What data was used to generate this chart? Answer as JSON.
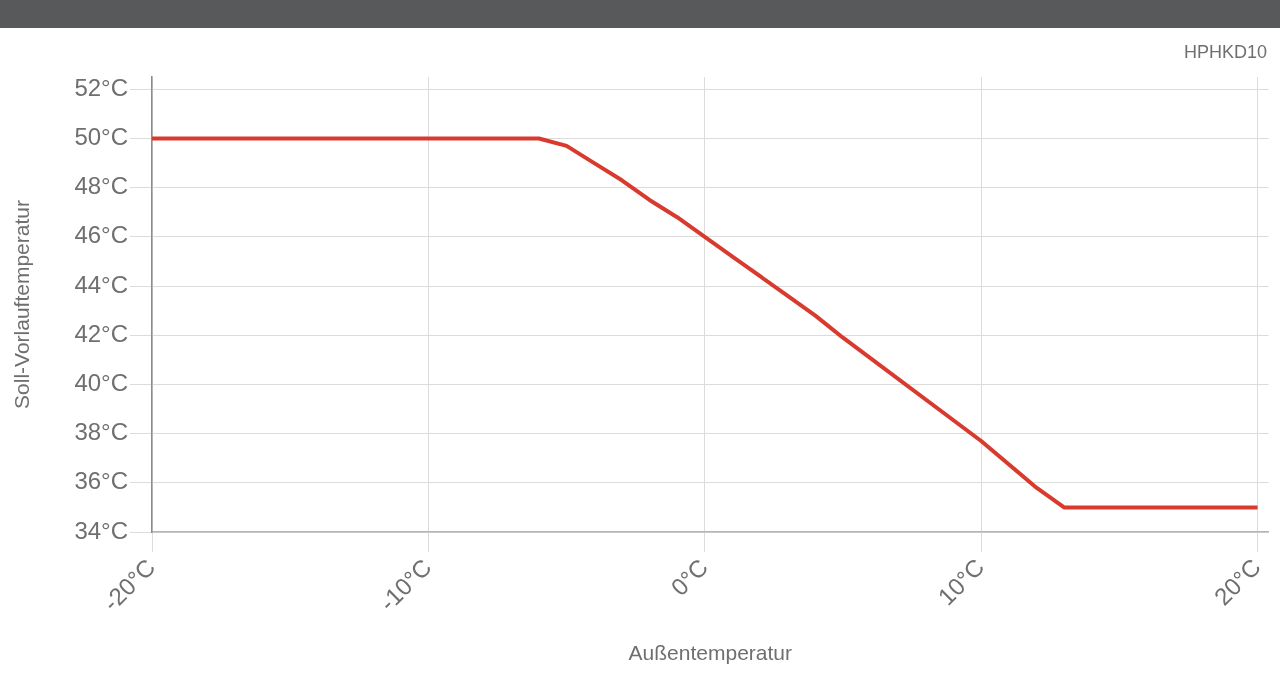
{
  "chart_data": {
    "type": "line",
    "annotations": [
      "HPHKD10"
    ],
    "xlabel": "Außentemperatur",
    "ylabel": "Soll-Vorlauftemperatur",
    "x": [
      -20,
      -6,
      -5,
      -4,
      -3,
      -2,
      -1,
      0,
      1,
      2,
      3,
      4,
      5,
      10,
      12,
      13,
      20
    ],
    "series": [
      {
        "color": "#d93a2e",
        "values": [
          50,
          50,
          49.7,
          49.0,
          48.3,
          47.5,
          46.8,
          46.0,
          45.2,
          44.4,
          43.6,
          42.8,
          41.9,
          37.7,
          35.8,
          35.0,
          35.0
        ]
      }
    ],
    "xlim": [
      -20,
      20.4
    ],
    "xticks": [
      {
        "value": -20,
        "label": "-20°C"
      },
      {
        "value": -10,
        "label": "-10°C"
      },
      {
        "value": 0,
        "label": "0°C"
      },
      {
        "value": 10,
        "label": "10°C"
      },
      {
        "value": 20,
        "label": "20°C"
      }
    ],
    "ylim": [
      34,
      52.5
    ],
    "yticks": [
      {
        "value": 34,
        "label": "34°C"
      },
      {
        "value": 36,
        "label": "36°C"
      },
      {
        "value": 38,
        "label": "38°C"
      },
      {
        "value": 40,
        "label": "40°C"
      },
      {
        "value": 42,
        "label": "42°C"
      },
      {
        "value": 44,
        "label": "44°C"
      },
      {
        "value": 46,
        "label": "46°C"
      },
      {
        "value": 48,
        "label": "48°C"
      },
      {
        "value": 50,
        "label": "50°C"
      },
      {
        "value": 52,
        "label": "52°C"
      }
    ],
    "grid": true
  }
}
